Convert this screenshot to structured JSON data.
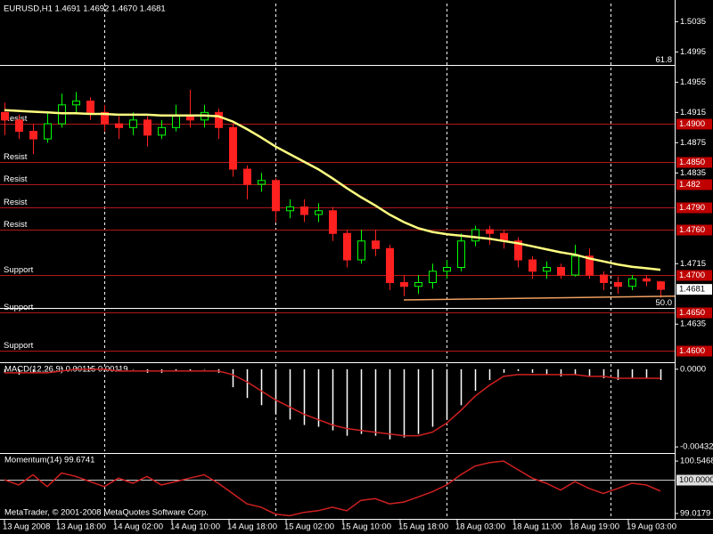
{
  "footer": "MetaTrader, © 2001-2008 MetaQuotes Software Corp.",
  "chart_data": [
    {
      "type": "candlestick",
      "title": "EURUSD,H1  1.4691 1.4692 1.4670 1.4681",
      "x": [
        0,
        2,
        4,
        6,
        8,
        10,
        12,
        14,
        16,
        18,
        20,
        22,
        24,
        26,
        28,
        30,
        32,
        34,
        36,
        38,
        40,
        42,
        44,
        46,
        48,
        50,
        52,
        54,
        56,
        58,
        60,
        62,
        64,
        66,
        68,
        70,
        72,
        74,
        76,
        78,
        80,
        82,
        84,
        86,
        88,
        90,
        92
      ],
      "xlim": [
        -0.625,
        94
      ],
      "xticks": [
        {
          "value": 0,
          "label": "13 Aug 2008"
        },
        {
          "value": 7.5,
          "label": "13 Aug 18:00"
        },
        {
          "value": 15.5,
          "label": "14 Aug 02:00"
        },
        {
          "value": 23.5,
          "label": "14 Aug 10:00"
        },
        {
          "value": 31.5,
          "label": "14 Aug 18:00"
        },
        {
          "value": 39.5,
          "label": "15 Aug 02:00"
        },
        {
          "value": 47.5,
          "label": "15 Aug 10:00"
        },
        {
          "value": 55.5,
          "label": "15 Aug 18:00"
        },
        {
          "value": 63.5,
          "label": "18 Aug 03:00"
        },
        {
          "value": 71.5,
          "label": "18 Aug 11:00"
        },
        {
          "value": 79.5,
          "label": "18 Aug 19:00"
        },
        {
          "value": 87.5,
          "label": "19 Aug 03:00"
        }
      ],
      "separators": [
        14,
        38,
        62,
        85
      ],
      "ylim": [
        1.4587,
        1.5059
      ],
      "yticks": [
        1.5035,
        1.4995,
        1.4955,
        1.4915,
        1.4875,
        1.4835,
        1.4715,
        1.4635
      ],
      "up_color": "#00ff00",
      "down_color": "#ff2020",
      "ohlc": [
        [
          1.4915,
          1.4928,
          1.4885,
          1.4905
        ],
        [
          1.4905,
          1.4912,
          1.488,
          1.489
        ],
        [
          1.489,
          1.49,
          1.486,
          1.488
        ],
        [
          1.488,
          1.4915,
          1.4875,
          1.49
        ],
        [
          1.49,
          1.494,
          1.4895,
          1.4925
        ],
        [
          1.4925,
          1.4942,
          1.4915,
          1.493
        ],
        [
          1.493,
          1.4935,
          1.4905,
          1.4915
        ],
        [
          1.4915,
          1.4925,
          1.489,
          1.49
        ],
        [
          1.49,
          1.491,
          1.488,
          1.4895
        ],
        [
          1.4895,
          1.4915,
          1.4885,
          1.4905
        ],
        [
          1.4905,
          1.491,
          1.487,
          1.4885
        ],
        [
          1.4885,
          1.4905,
          1.488,
          1.4895
        ],
        [
          1.4895,
          1.4925,
          1.489,
          1.491
        ],
        [
          1.491,
          1.4945,
          1.4895,
          1.4905
        ],
        [
          1.4905,
          1.4925,
          1.4895,
          1.4915
        ],
        [
          1.4915,
          1.492,
          1.488,
          1.4895
        ],
        [
          1.4895,
          1.49,
          1.483,
          1.484
        ],
        [
          1.484,
          1.4845,
          1.48,
          1.482
        ],
        [
          1.482,
          1.4835,
          1.481,
          1.4825
        ],
        [
          1.4825,
          1.4828,
          1.477,
          1.4785
        ],
        [
          1.4785,
          1.48,
          1.4775,
          1.479
        ],
        [
          1.479,
          1.48,
          1.477,
          1.478
        ],
        [
          1.478,
          1.4795,
          1.477,
          1.4785
        ],
        [
          1.4785,
          1.479,
          1.4745,
          1.4755
        ],
        [
          1.4755,
          1.476,
          1.471,
          1.472
        ],
        [
          1.472,
          1.476,
          1.4715,
          1.4745
        ],
        [
          1.4745,
          1.476,
          1.4725,
          1.4735
        ],
        [
          1.4735,
          1.474,
          1.468,
          1.469
        ],
        [
          1.469,
          1.47,
          1.4672,
          1.4685
        ],
        [
          1.4685,
          1.47,
          1.4675,
          1.469
        ],
        [
          1.469,
          1.4715,
          1.4682,
          1.4705
        ],
        [
          1.4705,
          1.472,
          1.4695,
          1.471
        ],
        [
          1.471,
          1.4755,
          1.4705,
          1.4745
        ],
        [
          1.4745,
          1.4765,
          1.4738,
          1.476
        ],
        [
          1.476,
          1.4765,
          1.474,
          1.4755
        ],
        [
          1.4755,
          1.476,
          1.4735,
          1.4745
        ],
        [
          1.4745,
          1.475,
          1.471,
          1.472
        ],
        [
          1.472,
          1.4725,
          1.4695,
          1.4705
        ],
        [
          1.4705,
          1.4718,
          1.4695,
          1.471
        ],
        [
          1.471,
          1.4715,
          1.4695,
          1.47
        ],
        [
          1.47,
          1.474,
          1.4698,
          1.4725
        ],
        [
          1.4725,
          1.4735,
          1.4695,
          1.47
        ],
        [
          1.47,
          1.4705,
          1.468,
          1.469
        ],
        [
          1.469,
          1.4698,
          1.4675,
          1.4685
        ],
        [
          1.4685,
          1.47,
          1.468,
          1.4695
        ],
        [
          1.4695,
          1.47,
          1.4685,
          1.4692
        ],
        [
          1.4691,
          1.4692,
          1.467,
          1.4681
        ]
      ],
      "ma": {
        "color": "#ffff80",
        "values": [
          1.4918,
          1.4917,
          1.4916,
          1.4915,
          1.4914,
          1.4914,
          1.4913,
          1.4913,
          1.4912,
          1.4912,
          1.4912,
          1.4911,
          1.4911,
          1.4911,
          1.4911,
          1.491,
          1.4903,
          1.4893,
          1.4882,
          1.487,
          1.486,
          1.485,
          1.484,
          1.4828,
          1.4815,
          1.4803,
          1.4792,
          1.478,
          1.477,
          1.4762,
          1.4757,
          1.4754,
          1.4752,
          1.475,
          1.4748,
          1.4745,
          1.4742,
          1.4738,
          1.4734,
          1.473,
          1.4727,
          1.4722,
          1.4718,
          1.4714,
          1.4711,
          1.4709,
          1.4707
        ]
      },
      "trendline": {
        "color": "#f0a060",
        "x": [
          56,
          94
        ],
        "values": [
          1.4667,
          1.4672
        ]
      },
      "level_color": "#b01818",
      "level_box_color": "#c00000",
      "levels": [
        {
          "name": "Resist",
          "price": {
            "value": 1.49,
            "label": "1.4900"
          }
        },
        {
          "name": "Resist",
          "price": {
            "value": 1.485,
            "label": "1.4850"
          }
        },
        {
          "name": "Resist",
          "price": 1.482
        },
        {
          "name": "Resist",
          "price": {
            "value": 1.479,
            "label": "1.4790"
          }
        },
        {
          "name": "Resist",
          "price": {
            "value": 1.476,
            "label": "1.4760"
          }
        },
        {
          "name": "Support",
          "price": {
            "value": 1.47,
            "label": "1.4700"
          }
        },
        {
          "name": "Support",
          "price": {
            "value": 1.465,
            "label": "1.4650"
          }
        },
        {
          "name": "Support",
          "price": {
            "value": 1.46,
            "label": "1.4600"
          }
        }
      ],
      "fib": [
        {
          "level": 61.8,
          "price": 1.4978
        },
        {
          "level": {
            "value": 50,
            "label": "50.0"
          },
          "price": 1.4657
        }
      ]
    },
    {
      "type": "macd",
      "title": "MACD(12,26,9) 0.00115 0.00119",
      "x": [
        0,
        2,
        4,
        6,
        8,
        10,
        12,
        14,
        16,
        18,
        20,
        22,
        24,
        26,
        28,
        30,
        32,
        34,
        36,
        38,
        40,
        42,
        44,
        46,
        48,
        50,
        52,
        54,
        56,
        58,
        60,
        62,
        64,
        66,
        68,
        70,
        72,
        74,
        76,
        78,
        80,
        82,
        84,
        86,
        88,
        90,
        92
      ],
      "xlim": [
        -0.625,
        94
      ],
      "separators": [
        14,
        38,
        62,
        85
      ],
      "ylim": [
        -0.00456,
        0.00029
      ],
      "yticks": [
        {
          "value": 0,
          "label": "0.0000"
        },
        -0.00432
      ],
      "bar_color": "#ffffff",
      "signal_color": "#d02020",
      "values": [
        -0.0002,
        -0.0003,
        -0.0002,
        0.0,
        0.0001,
        0.0001,
        0.0001,
        0.0,
        -0.0001,
        0.0,
        -0.0002,
        -0.0002,
        -0.0001,
        -0.0001,
        0.0,
        -0.0002,
        -0.001,
        -0.0016,
        -0.002,
        -0.0025,
        -0.0028,
        -0.0031,
        -0.0032,
        -0.0034,
        -0.0037,
        -0.0036,
        -0.0037,
        -0.0039,
        -0.0038,
        -0.0036,
        -0.0032,
        -0.0028,
        -0.002,
        -0.0012,
        -0.0006,
        -0.0002,
        -0.0001,
        -0.0002,
        -0.0003,
        -0.0004,
        -0.0003,
        -0.0004,
        -0.0005,
        -0.0006,
        -0.0005,
        -0.0005,
        -0.0006
      ],
      "signal": [
        -0.0002,
        -0.0002,
        -0.0002,
        -0.0002,
        -0.0001,
        0.0,
        0.0,
        0.0,
        -0.0001,
        -0.0001,
        -0.0001,
        -0.0001,
        -0.0001,
        -0.0001,
        -0.0001,
        -0.0001,
        -0.0003,
        -0.0007,
        -0.0012,
        -0.0017,
        -0.0021,
        -0.0025,
        -0.0028,
        -0.0031,
        -0.0033,
        -0.0034,
        -0.0035,
        -0.0036,
        -0.0037,
        -0.0037,
        -0.0035,
        -0.003,
        -0.0023,
        -0.0015,
        -0.0009,
        -0.0004,
        -0.0003,
        -0.0003,
        -0.0003,
        -0.0003,
        -0.0003,
        -0.0004,
        -0.0004,
        -0.0005,
        -0.0005,
        -0.0005,
        -0.0005
      ]
    },
    {
      "type": "line",
      "title": "Momentum(14) 99.6741",
      "x": [
        0,
        2,
        4,
        6,
        8,
        10,
        12,
        14,
        16,
        18,
        20,
        22,
        24,
        26,
        28,
        30,
        32,
        34,
        36,
        38,
        40,
        42,
        44,
        46,
        48,
        50,
        52,
        54,
        56,
        58,
        60,
        62,
        64,
        66,
        68,
        70,
        72,
        74,
        76,
        78,
        80,
        82,
        84,
        86,
        88,
        90,
        92
      ],
      "xlim": [
        -0.625,
        94
      ],
      "separators": [
        14,
        38,
        62,
        85
      ],
      "ylim": [
        98.886,
        100.7313
      ],
      "yticks": [
        100.5468,
        99.0179
      ],
      "levels": [
        {
          "value": 100,
          "label": "100.0000"
        }
      ],
      "color": "#d02020",
      "values": [
        100.0,
        99.85,
        100.15,
        99.8,
        100.2,
        100.1,
        99.95,
        99.8,
        100.05,
        99.9,
        100.1,
        99.85,
        99.95,
        100.05,
        100.15,
        99.9,
        99.6,
        99.3,
        99.2,
        99.0,
        98.95,
        99.05,
        99.1,
        99.2,
        99.1,
        99.4,
        99.45,
        99.3,
        99.35,
        99.5,
        99.65,
        99.85,
        100.15,
        100.4,
        100.5,
        100.55,
        100.3,
        100.05,
        99.9,
        99.7,
        99.95,
        99.75,
        99.6,
        99.75,
        99.9,
        99.85,
        99.6741
      ]
    }
  ]
}
